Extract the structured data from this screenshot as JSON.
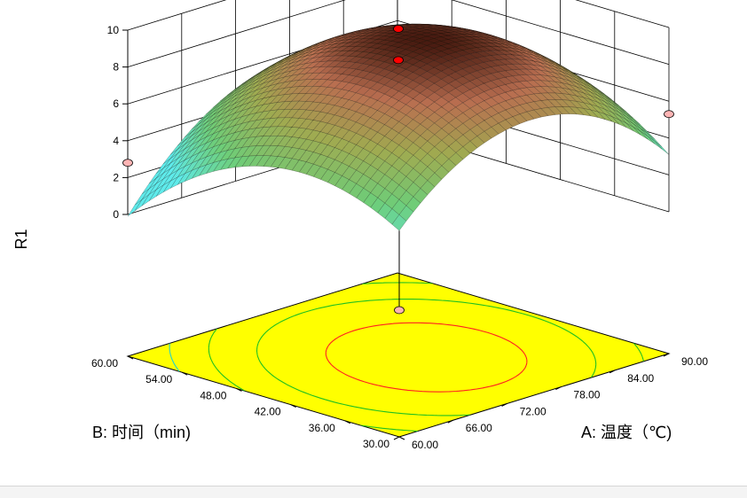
{
  "chart_data": {
    "type": "surface3d",
    "title": "",
    "zlabel": "R1",
    "xlabel": "A: 温度（℃)",
    "ylabel": "B: 时间（min)",
    "x_range": [
      60,
      90
    ],
    "y_range": [
      30,
      60
    ],
    "z_range": [
      0,
      10
    ],
    "x_ticks": [
      "60.00",
      "66.00",
      "72.00",
      "78.00",
      "84.00",
      "90.00"
    ],
    "y_ticks": [
      "30.00",
      "36.00",
      "42.00",
      "48.00",
      "54.00",
      "60.00"
    ],
    "z_ticks": [
      "0",
      "2",
      "4",
      "6",
      "8",
      "10"
    ],
    "surface_model": {
      "description": "quadratic response surface",
      "intercept": 9.5,
      "A_linear": 0.7,
      "B_linear": -0.9,
      "A_squared": -4.0,
      "B_squared": -3.1,
      "AB": 0.9
    },
    "design_points": [
      {
        "A": 75,
        "B": 45,
        "R1": 10.0,
        "color": "#ff0000"
      },
      {
        "A": 75,
        "B": 45,
        "R1": 8.3,
        "color": "#ff0000"
      },
      {
        "A": 90,
        "B": 30,
        "R1": 5.3,
        "color": "#ffb4b4"
      },
      {
        "A": 60,
        "B": 60,
        "R1": 2.8,
        "color": "#ffb4b4"
      },
      {
        "A": 60,
        "B": 30,
        "R1": 0.0,
        "color": "#ffb4b4"
      }
    ],
    "contour_colors": [
      "#ff2020",
      "#20c020",
      "#20d0d0"
    ],
    "floor_color": "#ffff00",
    "grid": true
  }
}
